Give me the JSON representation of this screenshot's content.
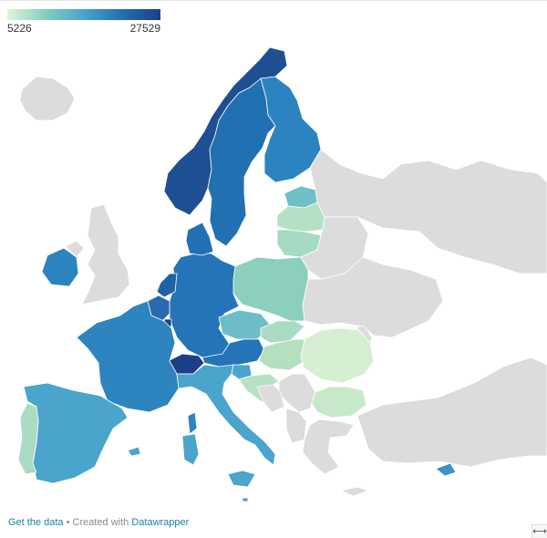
{
  "legend": {
    "min_label": "5226",
    "max_label": "27529"
  },
  "colors": {
    "no_data": "#dcdcdc",
    "border": "#ffffff",
    "scale": [
      "#e2f4dc",
      "#84cdbf",
      "#4aa4cb",
      "#2170b1",
      "#1c3f87"
    ]
  },
  "footer": {
    "get_data": "Get the data",
    "separator": " • Created with ",
    "credit": "Datawrapper"
  },
  "icons": {
    "resize": "resize-icon"
  }
}
